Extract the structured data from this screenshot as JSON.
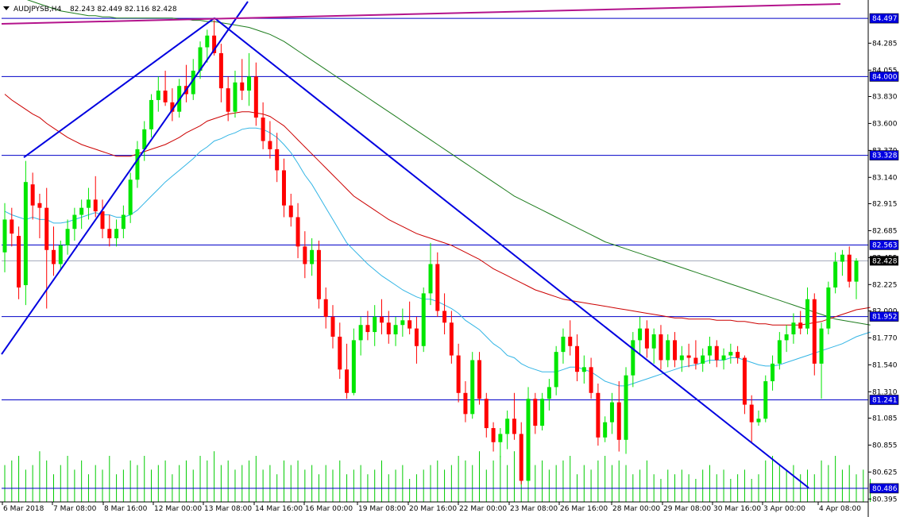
{
  "header": {
    "symbol": "AUDJPYSB,H4",
    "ohlc": "82.243 82.449 82.116 82.428"
  },
  "colors": {
    "background": "#ffffff",
    "bull_candle": "#00e600",
    "bear_candle": "#ff0000",
    "level_line": "#0000c8",
    "trend_line": "#0000e0",
    "magenta_line": "#b4148c",
    "ma_fast": "#33b5e5",
    "ma_mid": "#cc0000",
    "ma_slow": "#1e7d1e",
    "volume": "#00cc00",
    "label_bg": "#0000e0",
    "label_text": "#ffffff"
  },
  "chart_data": {
    "type": "candlestick",
    "ylim": [
      80.37,
      84.64
    ],
    "y_ticks": [
      "84.285",
      "84.055",
      "83.830",
      "83.600",
      "83.370",
      "83.140",
      "82.915",
      "82.685",
      "82.455",
      "82.225",
      "82.000",
      "81.770",
      "81.540",
      "81.310",
      "81.085",
      "80.855",
      "80.625",
      "80.395"
    ],
    "x_ticks": [
      "6 Mar 2018",
      "7 Mar 08:00",
      "8 Mar 16:00",
      "12 Mar 00:00",
      "13 Mar 08:00",
      "14 Mar 16:00",
      "16 Mar 00:00",
      "19 Mar 08:00",
      "20 Mar 16:00",
      "22 Mar 00:00",
      "23 Mar 08:00",
      "26 Mar 16:00",
      "28 Mar 00:00",
      "29 Mar 08:00",
      "30 Mar 16:00",
      "3 Apr 00:00",
      "4 Apr 08:00"
    ],
    "horizontal_levels": [
      {
        "value": 84.497,
        "label": "84.497"
      },
      {
        "value": 84.0,
        "label": "84.000"
      },
      {
        "value": 83.328,
        "label": "83.328"
      },
      {
        "value": 82.563,
        "label": "82.563"
      },
      {
        "value": 81.952,
        "label": "81.952"
      },
      {
        "value": 81.241,
        "label": "81.241"
      },
      {
        "value": 80.486,
        "label": "80.486"
      }
    ],
    "current_price": {
      "value": 82.428,
      "label": "82.428"
    },
    "candles_ohlc": [
      [
        82.5,
        82.92,
        82.33,
        82.78
      ],
      [
        82.78,
        82.88,
        82.55,
        82.66
      ],
      [
        82.64,
        82.72,
        82.1,
        82.2
      ],
      [
        82.22,
        83.28,
        82.05,
        83.1
      ],
      [
        83.08,
        83.18,
        82.78,
        82.9
      ],
      [
        82.92,
        83.0,
        82.62,
        82.88
      ],
      [
        82.88,
        83.05,
        82.02,
        82.52
      ],
      [
        82.52,
        82.72,
        82.3,
        82.4
      ],
      [
        82.4,
        82.6,
        82.35,
        82.56
      ],
      [
        82.56,
        82.78,
        82.48,
        82.7
      ],
      [
        82.7,
        82.88,
        82.6,
        82.82
      ],
      [
        82.82,
        82.95,
        82.7,
        82.88
      ],
      [
        82.88,
        83.05,
        82.78,
        82.95
      ],
      [
        82.95,
        83.15,
        82.8,
        82.85
      ],
      [
        82.85,
        82.95,
        82.62,
        82.7
      ],
      [
        82.7,
        82.82,
        82.55,
        82.62
      ],
      [
        82.62,
        82.78,
        82.55,
        82.7
      ],
      [
        82.7,
        82.9,
        82.62,
        82.82
      ],
      [
        82.82,
        83.18,
        82.75,
        83.12
      ],
      [
        83.12,
        83.45,
        83.05,
        83.38
      ],
      [
        83.38,
        83.62,
        83.28,
        83.55
      ],
      [
        83.55,
        83.85,
        83.48,
        83.8
      ],
      [
        83.8,
        84.0,
        83.7,
        83.88
      ],
      [
        83.88,
        84.05,
        83.75,
        83.78
      ],
      [
        83.78,
        83.9,
        83.62,
        83.7
      ],
      [
        83.7,
        83.98,
        83.65,
        83.92
      ],
      [
        83.92,
        84.1,
        83.78,
        83.85
      ],
      [
        83.85,
        84.15,
        83.8,
        84.05
      ],
      [
        84.05,
        84.3,
        83.98,
        84.25
      ],
      [
        84.25,
        84.4,
        84.12,
        84.35
      ],
      [
        84.35,
        84.48,
        84.18,
        84.2
      ],
      [
        84.2,
        84.28,
        83.78,
        83.9
      ],
      [
        83.9,
        84.0,
        83.62,
        83.7
      ],
      [
        83.7,
        84.05,
        83.65,
        83.95
      ],
      [
        83.95,
        84.15,
        83.8,
        83.88
      ],
      [
        83.88,
        84.2,
        83.75,
        84.0
      ],
      [
        84.0,
        84.12,
        83.58,
        83.65
      ],
      [
        83.65,
        83.78,
        83.38,
        83.45
      ],
      [
        83.45,
        83.62,
        83.3,
        83.38
      ],
      [
        83.38,
        83.52,
        83.1,
        83.2
      ],
      [
        83.2,
        83.3,
        82.8,
        82.9
      ],
      [
        82.9,
        83.0,
        82.72,
        82.8
      ],
      [
        82.8,
        82.92,
        82.45,
        82.55
      ],
      [
        82.55,
        82.68,
        82.28,
        82.4
      ],
      [
        82.4,
        82.62,
        82.3,
        82.52
      ],
      [
        82.52,
        82.6,
        82.02,
        82.1
      ],
      [
        82.1,
        82.2,
        81.85,
        81.95
      ],
      [
        81.95,
        82.05,
        81.68,
        81.78
      ],
      [
        81.78,
        81.9,
        81.42,
        81.5
      ],
      [
        81.5,
        81.72,
        81.25,
        81.3
      ],
      [
        81.3,
        81.85,
        81.28,
        81.75
      ],
      [
        81.75,
        81.95,
        81.62,
        81.88
      ],
      [
        81.88,
        82.0,
        81.75,
        81.82
      ],
      [
        81.82,
        82.05,
        81.7,
        81.95
      ],
      [
        81.95,
        82.1,
        81.8,
        81.9
      ],
      [
        81.9,
        82.0,
        81.72,
        81.8
      ],
      [
        81.8,
        81.95,
        81.7,
        81.88
      ],
      [
        81.88,
        82.02,
        81.78,
        81.92
      ],
      [
        81.92,
        82.08,
        81.8,
        81.85
      ],
      [
        81.85,
        81.95,
        81.55,
        81.7
      ],
      [
        81.7,
        82.2,
        81.65,
        82.15
      ],
      [
        82.15,
        82.58,
        82.05,
        82.4
      ],
      [
        82.4,
        82.5,
        81.95,
        82.0
      ],
      [
        82.0,
        82.15,
        81.8,
        81.9
      ],
      [
        81.9,
        82.0,
        81.55,
        81.62
      ],
      [
        81.62,
        81.72,
        81.22,
        81.3
      ],
      [
        81.3,
        81.4,
        81.05,
        81.12
      ],
      [
        81.12,
        81.65,
        81.08,
        81.58
      ],
      [
        81.58,
        81.65,
        81.2,
        81.25
      ],
      [
        81.25,
        81.3,
        80.92,
        81.0
      ],
      [
        81.0,
        81.05,
        80.8,
        80.88
      ],
      [
        80.88,
        81.0,
        80.75,
        80.95
      ],
      [
        80.95,
        81.15,
        80.82,
        81.08
      ],
      [
        81.08,
        81.3,
        80.9,
        80.95
      ],
      [
        80.95,
        81.05,
        80.52,
        80.55
      ],
      [
        80.55,
        81.35,
        80.5,
        81.25
      ],
      [
        81.25,
        81.3,
        80.95,
        81.02
      ],
      [
        81.02,
        81.3,
        80.98,
        81.25
      ],
      [
        81.25,
        81.42,
        81.15,
        81.35
      ],
      [
        81.35,
        81.7,
        81.28,
        81.65
      ],
      [
        81.65,
        81.85,
        81.55,
        81.78
      ],
      [
        81.78,
        81.92,
        81.62,
        81.7
      ],
      [
        81.7,
        81.8,
        81.4,
        81.48
      ],
      [
        81.48,
        81.62,
        81.38,
        81.52
      ],
      [
        81.52,
        81.6,
        81.25,
        81.3
      ],
      [
        81.3,
        81.38,
        80.85,
        80.92
      ],
      [
        80.92,
        81.1,
        80.88,
        81.05
      ],
      [
        81.05,
        81.3,
        80.95,
        81.22
      ],
      [
        81.22,
        81.4,
        80.8,
        80.9
      ],
      [
        80.9,
        81.52,
        80.78,
        81.45
      ],
      [
        81.45,
        81.82,
        81.35,
        81.75
      ],
      [
        81.75,
        81.95,
        81.62,
        81.85
      ],
      [
        81.85,
        81.92,
        81.6,
        81.68
      ],
      [
        81.68,
        81.85,
        81.55,
        81.8
      ],
      [
        81.8,
        81.88,
        81.5,
        81.58
      ],
      [
        81.58,
        81.8,
        81.52,
        81.75
      ],
      [
        81.75,
        81.82,
        81.52,
        81.58
      ],
      [
        81.58,
        81.7,
        81.48,
        81.62
      ],
      [
        81.62,
        81.72,
        81.52,
        81.6
      ],
      [
        81.6,
        81.75,
        81.5,
        81.55
      ],
      [
        81.55,
        81.68,
        81.48,
        81.62
      ],
      [
        81.62,
        81.78,
        81.55,
        81.7
      ],
      [
        81.7,
        81.75,
        81.52,
        81.58
      ],
      [
        81.58,
        81.68,
        81.5,
        81.62
      ],
      [
        81.62,
        81.72,
        81.55,
        81.65
      ],
      [
        81.65,
        81.7,
        81.55,
        81.6
      ],
      [
        81.6,
        81.62,
        81.12,
        81.2
      ],
      [
        81.2,
        81.28,
        80.88,
        81.05
      ],
      [
        81.05,
        81.15,
        81.02,
        81.08
      ],
      [
        81.08,
        81.45,
        81.05,
        81.4
      ],
      [
        81.4,
        81.62,
        81.32,
        81.55
      ],
      [
        81.55,
        81.82,
        81.5,
        81.75
      ],
      [
        81.75,
        81.88,
        81.65,
        81.8
      ],
      [
        81.8,
        81.98,
        81.72,
        81.9
      ],
      [
        81.9,
        82.0,
        81.8,
        81.85
      ],
      [
        81.85,
        82.2,
        81.8,
        82.1
      ],
      [
        82.1,
        82.15,
        81.45,
        81.55
      ],
      [
        81.55,
        81.9,
        81.25,
        81.85
      ],
      [
        81.85,
        82.25,
        81.8,
        82.2
      ],
      [
        82.2,
        82.5,
        82.15,
        82.42
      ],
      [
        82.42,
        82.52,
        82.3,
        82.48
      ],
      [
        82.48,
        82.55,
        82.2,
        82.25
      ],
      [
        82.25,
        82.45,
        82.1,
        82.428
      ]
    ],
    "ma_fast": [
      82.85,
      82.82,
      82.8,
      82.78,
      82.8,
      82.78,
      82.78,
      82.75,
      82.75,
      82.76,
      82.78,
      82.8,
      82.82,
      82.84,
      82.82,
      82.82,
      82.8,
      82.8,
      82.82,
      82.86,
      82.92,
      82.98,
      83.04,
      83.1,
      83.15,
      83.2,
      83.25,
      83.3,
      83.36,
      83.4,
      83.45,
      83.47,
      83.5,
      83.52,
      83.55,
      83.56,
      83.56,
      83.55,
      83.52,
      83.48,
      83.42,
      83.35,
      83.26,
      83.16,
      83.08,
      82.98,
      82.88,
      82.78,
      82.68,
      82.58,
      82.52,
      82.46,
      82.4,
      82.35,
      82.3,
      82.26,
      82.22,
      82.18,
      82.15,
      82.12,
      82.1,
      82.1,
      82.08,
      82.05,
      82.02,
      81.98,
      81.92,
      81.88,
      81.84,
      81.78,
      81.72,
      81.68,
      81.62,
      81.6,
      81.55,
      81.52,
      81.5,
      81.48,
      81.48,
      81.48,
      81.5,
      81.52,
      81.52,
      81.5,
      81.48,
      81.44,
      81.4,
      81.38,
      81.36,
      81.36,
      81.38,
      81.4,
      81.42,
      81.44,
      81.46,
      81.48,
      81.5,
      81.52,
      81.53,
      81.54,
      81.56,
      81.58,
      81.58,
      81.58,
      81.6,
      81.6,
      81.58,
      81.56,
      81.54,
      81.53,
      81.53,
      81.54,
      81.56,
      81.58,
      81.6,
      81.62,
      81.64,
      81.66,
      81.68,
      81.7,
      81.72,
      81.75,
      81.78,
      81.8,
      81.82
    ],
    "ma_mid": [
      83.85,
      83.8,
      83.76,
      83.72,
      83.68,
      83.65,
      83.6,
      83.56,
      83.52,
      83.48,
      83.45,
      83.42,
      83.4,
      83.38,
      83.36,
      83.34,
      83.32,
      83.32,
      83.32,
      83.34,
      83.36,
      83.38,
      83.4,
      83.42,
      83.45,
      83.48,
      83.52,
      83.55,
      83.58,
      83.62,
      83.64,
      83.66,
      83.68,
      83.69,
      83.7,
      83.7,
      83.69,
      83.68,
      83.66,
      83.62,
      83.58,
      83.52,
      83.46,
      83.4,
      83.34,
      83.28,
      83.22,
      83.16,
      83.1,
      83.04,
      82.98,
      82.94,
      82.9,
      82.86,
      82.82,
      82.78,
      82.75,
      82.72,
      82.69,
      82.66,
      82.64,
      82.62,
      82.6,
      82.58,
      82.56,
      82.53,
      82.5,
      82.47,
      82.44,
      82.4,
      82.36,
      82.33,
      82.3,
      82.27,
      82.24,
      82.21,
      82.18,
      82.16,
      82.14,
      82.12,
      82.1,
      82.09,
      82.08,
      82.07,
      82.06,
      82.05,
      82.04,
      82.03,
      82.02,
      82.01,
      82.0,
      81.99,
      81.98,
      81.97,
      81.96,
      81.95,
      81.94,
      81.94,
      81.93,
      81.93,
      81.93,
      81.93,
      81.92,
      81.92,
      81.92,
      81.91,
      81.91,
      81.9,
      81.89,
      81.89,
      81.88,
      81.88,
      81.88,
      81.88,
      81.88,
      81.89,
      81.9,
      81.91,
      81.93,
      81.95,
      81.97,
      81.99,
      82.01,
      82.02,
      82.03
    ],
    "ma_slow": [
      84.72,
      84.7,
      84.68,
      84.66,
      84.64,
      84.62,
      84.6,
      84.58,
      84.56,
      84.55,
      84.54,
      84.53,
      84.52,
      84.52,
      84.51,
      84.51,
      84.5,
      84.5,
      84.5,
      84.5,
      84.5,
      84.5,
      84.5,
      84.5,
      84.5,
      84.49,
      84.49,
      84.48,
      84.48,
      84.47,
      84.47,
      84.46,
      84.45,
      84.44,
      84.43,
      84.42,
      84.4,
      84.38,
      84.36,
      84.33,
      84.3,
      84.26,
      84.22,
      84.18,
      84.14,
      84.1,
      84.06,
      84.02,
      83.98,
      83.94,
      83.9,
      83.86,
      83.82,
      83.78,
      83.74,
      83.7,
      83.66,
      83.62,
      83.58,
      83.54,
      83.5,
      83.46,
      83.42,
      83.38,
      83.34,
      83.3,
      83.26,
      83.22,
      83.18,
      83.14,
      83.1,
      83.06,
      83.02,
      82.98,
      82.95,
      82.92,
      82.89,
      82.86,
      82.83,
      82.8,
      82.77,
      82.74,
      82.71,
      82.68,
      82.65,
      82.62,
      82.59,
      82.57,
      82.55,
      82.53,
      82.51,
      82.49,
      82.47,
      82.45,
      82.43,
      82.41,
      82.39,
      82.37,
      82.35,
      82.33,
      82.31,
      82.29,
      82.27,
      82.25,
      82.23,
      82.21,
      82.19,
      82.17,
      82.15,
      82.13,
      82.11,
      82.09,
      82.07,
      82.05,
      82.03,
      82.01,
      81.99,
      81.97,
      81.95,
      81.93,
      81.92,
      81.91,
      81.9,
      81.89,
      81.88
    ],
    "volumes": [
      0.8,
      0.9,
      1.0,
      0.7,
      0.8,
      1.1,
      0.9,
      0.6,
      0.8,
      1.0,
      0.7,
      0.9,
      0.6,
      0.8,
      0.7,
      1.0,
      0.6,
      0.7,
      0.9,
      0.8,
      1.0,
      0.7,
      0.8,
      0.9,
      0.6,
      0.8,
      0.9,
      0.7,
      1.0,
      0.9,
      1.1,
      0.8,
      0.9,
      0.7,
      0.8,
      0.9,
      1.0,
      0.7,
      0.8,
      0.6,
      0.9,
      0.8,
      0.9,
      0.7,
      0.8,
      0.6,
      0.8,
      0.7,
      0.9,
      0.6,
      0.7,
      0.8,
      0.6,
      0.7,
      0.9,
      0.6,
      0.7,
      0.8,
      0.5,
      0.6,
      0.7,
      0.8,
      0.9,
      0.7,
      0.8,
      1.0,
      0.9,
      0.8,
      1.1,
      0.7,
      0.9,
      1.0,
      0.8,
      1.1,
      0.9,
      1.0,
      0.8,
      0.9,
      0.7,
      0.8,
      0.9,
      1.0,
      0.6,
      0.8,
      0.7,
      0.9,
      1.0,
      0.8,
      0.9,
      0.8,
      0.6,
      0.7,
      0.9,
      0.6,
      0.5,
      0.7,
      0.6,
      0.7,
      0.6,
      0.5,
      0.7,
      0.8,
      0.6,
      0.7,
      0.5,
      0.6,
      0.7,
      0.5,
      0.6,
      0.9,
      1.0,
      0.8,
      0.7,
      0.8,
      0.6,
      0.7,
      0.6,
      0.9,
      0.8,
      1.0,
      0.7,
      0.8,
      0.6,
      0.7,
      0.5
    ]
  }
}
